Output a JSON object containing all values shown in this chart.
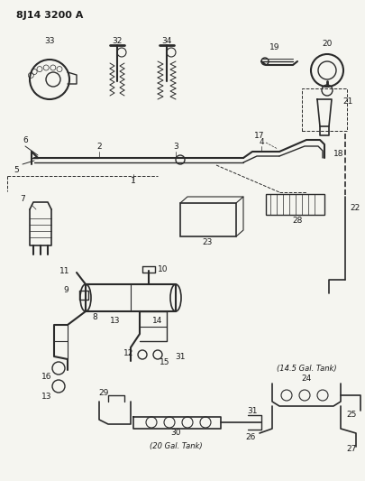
{
  "title": "8J14 3200 A",
  "bg_color": "#f5f5f0",
  "line_color": "#2a2a2a",
  "text_color": "#1a1a1a",
  "fig_width": 4.06,
  "fig_height": 5.33,
  "dpi": 100
}
